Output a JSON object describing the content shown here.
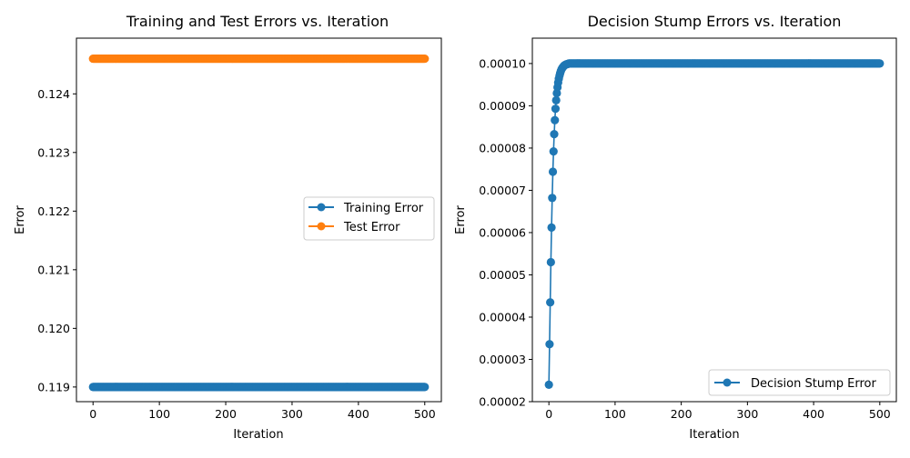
{
  "chart_data": [
    {
      "type": "line",
      "title": "Training and Test Errors vs. Iteration",
      "xlabel": "Iteration",
      "ylabel": "Error",
      "xlim": [
        -25,
        525
      ],
      "ylim": [
        0.11875,
        0.12495
      ],
      "xticks": [
        0,
        100,
        200,
        300,
        400,
        500
      ],
      "xtick_labels": [
        "0",
        "100",
        "200",
        "300",
        "400",
        "500"
      ],
      "yticks": [
        0.119,
        0.12,
        0.121,
        0.122,
        0.123,
        0.124
      ],
      "ytick_labels": [
        "0.119",
        "0.120",
        "0.121",
        "0.122",
        "0.123",
        "0.124"
      ],
      "legend_position": "center-right",
      "grid": false,
      "series": [
        {
          "name": "Training Error",
          "color": "#1f77b4",
          "marker": "circle",
          "x_start": 0,
          "x_end": 500,
          "constant_value": 0.119
        },
        {
          "name": "Test Error",
          "color": "#ff7f0e",
          "marker": "circle",
          "x_start": 0,
          "x_end": 500,
          "constant_value": 0.1246
        }
      ]
    },
    {
      "type": "line",
      "title": "Decision Stump Errors vs. Iteration",
      "xlabel": "Iteration",
      "ylabel": "Error",
      "xlim": [
        -25,
        525
      ],
      "ylim": [
        2e-05,
        0.000106
      ],
      "xticks": [
        0,
        100,
        200,
        300,
        400,
        500
      ],
      "xtick_labels": [
        "0",
        "100",
        "200",
        "300",
        "400",
        "500"
      ],
      "yticks": [
        2e-05,
        3e-05,
        4e-05,
        5e-05,
        6e-05,
        7e-05,
        8e-05,
        9e-05,
        0.0001
      ],
      "ytick_labels": [
        "0.00002",
        "0.00003",
        "0.00004",
        "0.00005",
        "0.00006",
        "0.00007",
        "0.00008",
        "0.00009",
        "0.00010"
      ],
      "legend_position": "lower-right",
      "grid": false,
      "series": [
        {
          "name": "Decision Stump Error",
          "color": "#1f77b4",
          "marker": "circle",
          "x_start": 0,
          "x_end": 500,
          "initial_values": [
            2.4e-05,
            3.36e-05,
            4.35e-05,
            5.3e-05,
            6.12e-05,
            6.82e-05,
            7.44e-05,
            7.92e-05,
            8.33e-05,
            8.66e-05,
            8.93e-05,
            9.13e-05,
            9.3e-05,
            9.44e-05,
            9.55e-05,
            9.64e-05,
            9.71e-05,
            9.77e-05,
            9.82e-05,
            9.86e-05,
            9.89e-05,
            9.91e-05,
            9.93e-05,
            9.95e-05,
            9.96e-05,
            9.97e-05,
            9.98e-05,
            9.98e-05,
            9.99e-05,
            9.99e-05
          ],
          "plateau_value": 0.0001
        }
      ]
    }
  ]
}
